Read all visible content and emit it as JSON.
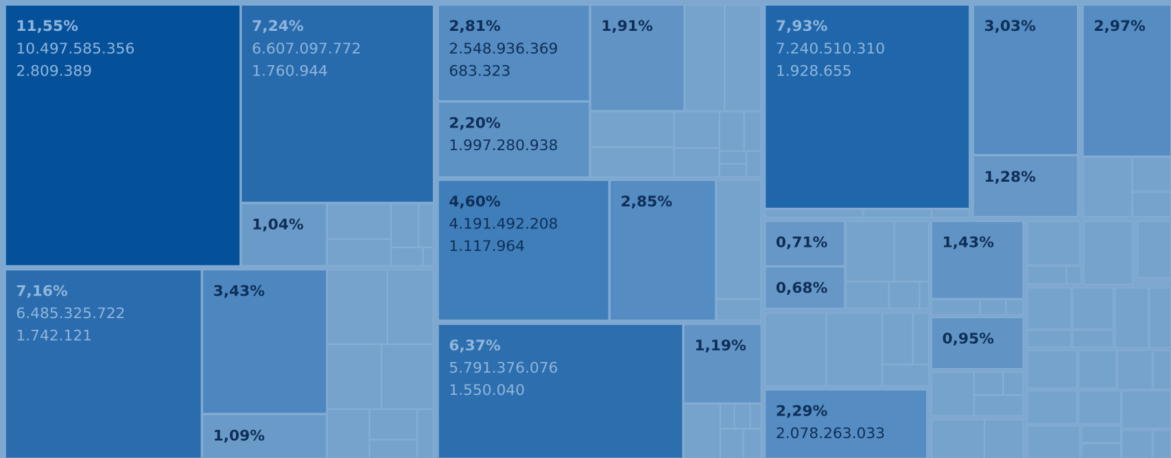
{
  "cells": [
    {
      "lines": [
        "11,55%",
        "10.497.585.356",
        "2.809.389"
      ]
    },
    {
      "lines": [
        "7,24%",
        "6.607.097.772",
        "1.760.944"
      ]
    },
    {
      "lines": [
        "1,04%"
      ]
    },
    {
      "lines": [
        "7,16%",
        "6.485.325.722",
        "1.742.121"
      ]
    },
    {
      "lines": [
        "3,43%"
      ]
    },
    {
      "lines": [
        "1,09%"
      ]
    },
    {
      "lines": [
        "2,81%",
        "2.548.936.369",
        "683.323"
      ]
    },
    {
      "lines": [
        "2,20%",
        "1.997.280.938"
      ]
    },
    {
      "lines": [
        "1,91%"
      ]
    },
    {
      "lines": [
        "4,60%",
        "4.191.492.208",
        "1.117.964"
      ]
    },
    {
      "lines": [
        "2,85%"
      ]
    },
    {
      "lines": [
        "6,37%",
        "5.791.376.076",
        "1.550.040"
      ]
    },
    {
      "lines": [
        "1,19%"
      ]
    },
    {
      "lines": [
        "7,93%",
        "7.240.510.310",
        "1.928.655"
      ]
    },
    {
      "lines": [
        "3,03%"
      ]
    },
    {
      "lines": [
        "1,28%"
      ]
    },
    {
      "lines": [
        "2,97%"
      ]
    },
    {
      "lines": [
        "0,71%"
      ]
    },
    {
      "lines": [
        "0,68%"
      ]
    },
    {
      "lines": [
        "1,43%"
      ]
    },
    {
      "lines": [
        "0,95%"
      ]
    },
    {
      "lines": [
        "2,29%",
        "2.078.263.033"
      ]
    }
  ]
}
